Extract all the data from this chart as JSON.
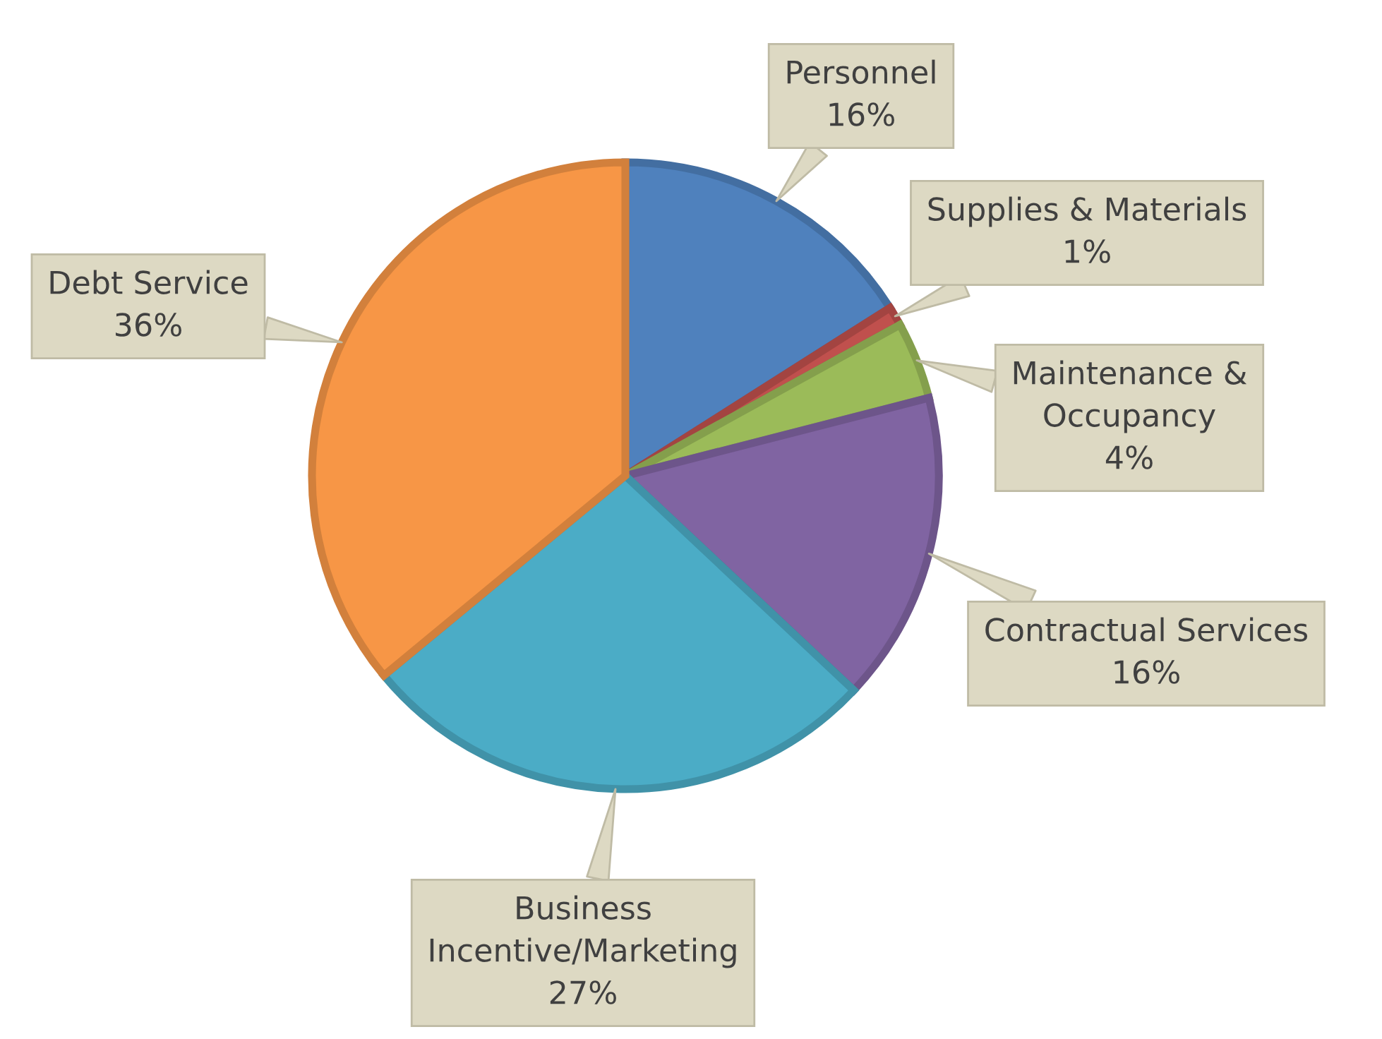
{
  "chart_data": {
    "type": "pie",
    "categories": [
      "Personnel",
      "Supplies & Materials",
      "Maintenance &\nOccupancy",
      "Contractual Services",
      "Business\nIncentive/Marketing",
      "Debt Service"
    ],
    "values": [
      16,
      1,
      4,
      16,
      27,
      36
    ],
    "colors": [
      "#4f81bd",
      "#c0504d",
      "#9bbb59",
      "#8064a2",
      "#4bacc6",
      "#f79646"
    ],
    "value_labels": [
      "16%",
      "1%",
      "4%",
      "16%",
      "27%",
      "36%"
    ]
  }
}
